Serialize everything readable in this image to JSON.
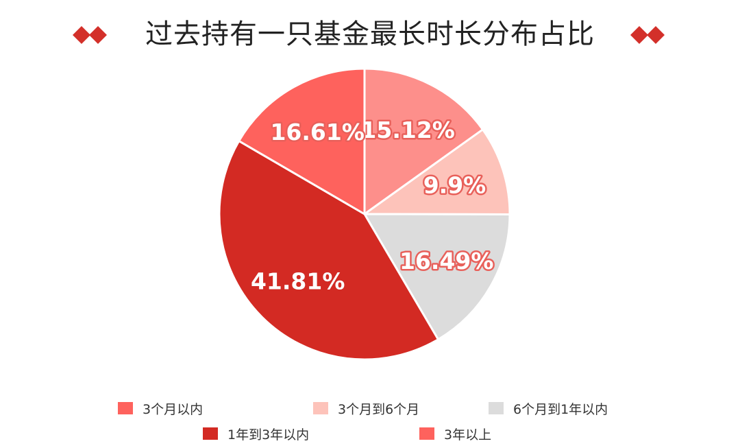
{
  "colors": {
    "title": "#222222",
    "accent": "#d3302a",
    "slice_border": "#ffffff",
    "label_text": "#ffffff",
    "label_outline_dark": "#c8302b",
    "label_outline_light": "#e8605a",
    "label_text_on_gray": "#ffffff"
  },
  "chart_data": {
    "type": "pie",
    "title": "过去持有一只基金最长时长分布占比",
    "slices": [
      {
        "label": "3个月以内",
        "value": 15.12,
        "value_label": "15.12%",
        "color": "#fd8f8b"
      },
      {
        "label": "3个月到6个月",
        "value": 9.9,
        "value_label": "9.9%",
        "color": "#fdc3ba"
      },
      {
        "label": "6个月到1年以内",
        "value": 16.49,
        "value_label": "16.49%",
        "color": "#dcdcdc"
      },
      {
        "label": "1年到3年以内",
        "value": 41.81,
        "value_label": "41.81%",
        "color": "#d32a23"
      },
      {
        "label": "3年以上",
        "value": 16.61,
        "value_label": "16.61%",
        "color": "#fe625d"
      }
    ],
    "legend": [
      {
        "label": "3个月以内",
        "color": "#fe625d"
      },
      {
        "label": "3个月到6个月",
        "color": "#fdc3ba"
      },
      {
        "label": "6个月到1年以内",
        "color": "#dcdcdc"
      },
      {
        "label": "1年到3年以内",
        "color": "#d32a23"
      },
      {
        "label": "3年以上",
        "color": "#fe625d"
      }
    ],
    "legend_position": "bottom",
    "start_angle_deg": 0,
    "direction": "clockwise"
  }
}
